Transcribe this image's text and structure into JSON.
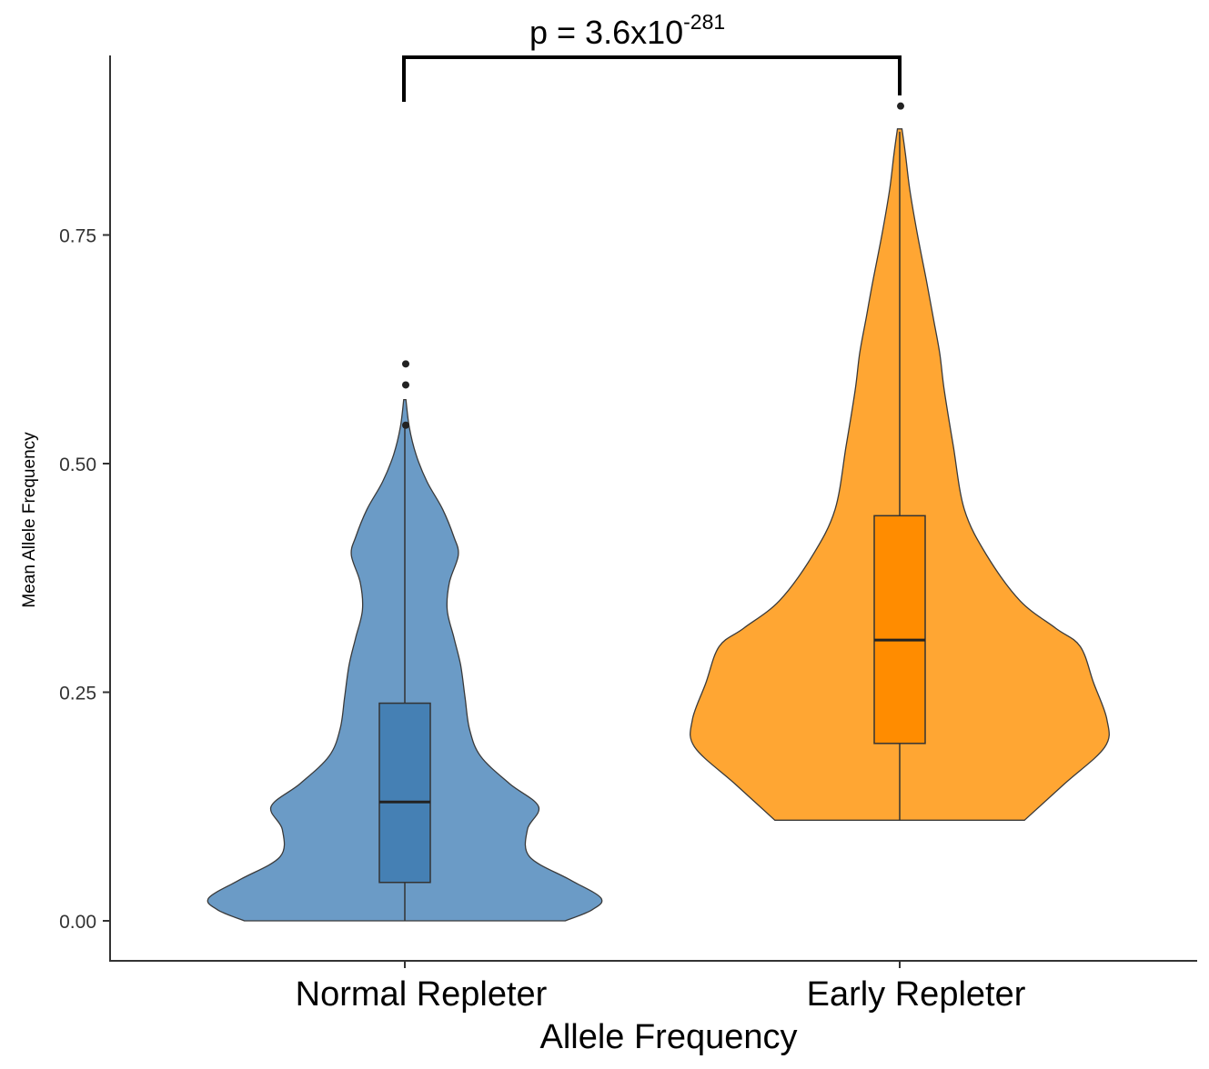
{
  "chart_data": {
    "type": "violin",
    "title": "",
    "xlabel": "Allele Frequency",
    "ylabel": "Mean Allele Frequency",
    "ylim": [
      -0.04,
      0.95
    ],
    "yticks": [
      0.0,
      0.25,
      0.5,
      0.75
    ],
    "ytick_labels": [
      "0.00",
      "0.25",
      "0.50",
      "0.75"
    ],
    "grid": false,
    "legend": "none",
    "annotation": {
      "p_prefix": "p = 3.6x10",
      "p_exponent": "-281"
    },
    "groups": [
      {
        "name": "Normal Repleter",
        "fill": "#6b9bc6",
        "box_fill": "#4580b4",
        "box": {
          "whisker_low": 0.0,
          "q1": 0.042,
          "median": 0.13,
          "q3": 0.238,
          "whisker_high": 0.54
        },
        "outliers": [
          0.542,
          0.586,
          0.609
        ],
        "violin_range": [
          0.0,
          0.57
        ],
        "violin_profile": [
          [
            0.0,
            0.72
          ],
          [
            0.012,
            0.84
          ],
          [
            0.025,
            0.88
          ],
          [
            0.045,
            0.74
          ],
          [
            0.07,
            0.56
          ],
          [
            0.1,
            0.55
          ],
          [
            0.125,
            0.6
          ],
          [
            0.15,
            0.47
          ],
          [
            0.18,
            0.34
          ],
          [
            0.21,
            0.29
          ],
          [
            0.245,
            0.27
          ],
          [
            0.28,
            0.25
          ],
          [
            0.31,
            0.22
          ],
          [
            0.34,
            0.19
          ],
          [
            0.37,
            0.2
          ],
          [
            0.4,
            0.24
          ],
          [
            0.42,
            0.22
          ],
          [
            0.45,
            0.17
          ],
          [
            0.48,
            0.1
          ],
          [
            0.51,
            0.05
          ],
          [
            0.54,
            0.02
          ],
          [
            0.57,
            0.005
          ]
        ]
      },
      {
        "name": "Early Repleter",
        "fill": "#ffa633",
        "box_fill": "#ff8c00",
        "box": {
          "whisker_low": 0.11,
          "q1": 0.194,
          "median": 0.307,
          "q3": 0.443,
          "whisker_high": 0.863
        },
        "outliers": [
          0.891
        ],
        "violin_range": [
          0.11,
          0.866
        ],
        "violin_profile": [
          [
            0.11,
            0.56
          ],
          [
            0.15,
            0.74
          ],
          [
            0.19,
            0.92
          ],
          [
            0.22,
            0.93
          ],
          [
            0.26,
            0.87
          ],
          [
            0.3,
            0.81
          ],
          [
            0.32,
            0.7
          ],
          [
            0.35,
            0.54
          ],
          [
            0.4,
            0.39
          ],
          [
            0.45,
            0.29
          ],
          [
            0.52,
            0.24
          ],
          [
            0.58,
            0.2
          ],
          [
            0.62,
            0.18
          ],
          [
            0.66,
            0.15
          ],
          [
            0.7,
            0.12
          ],
          [
            0.75,
            0.08
          ],
          [
            0.8,
            0.045
          ],
          [
            0.84,
            0.025
          ],
          [
            0.866,
            0.01
          ]
        ]
      }
    ]
  }
}
